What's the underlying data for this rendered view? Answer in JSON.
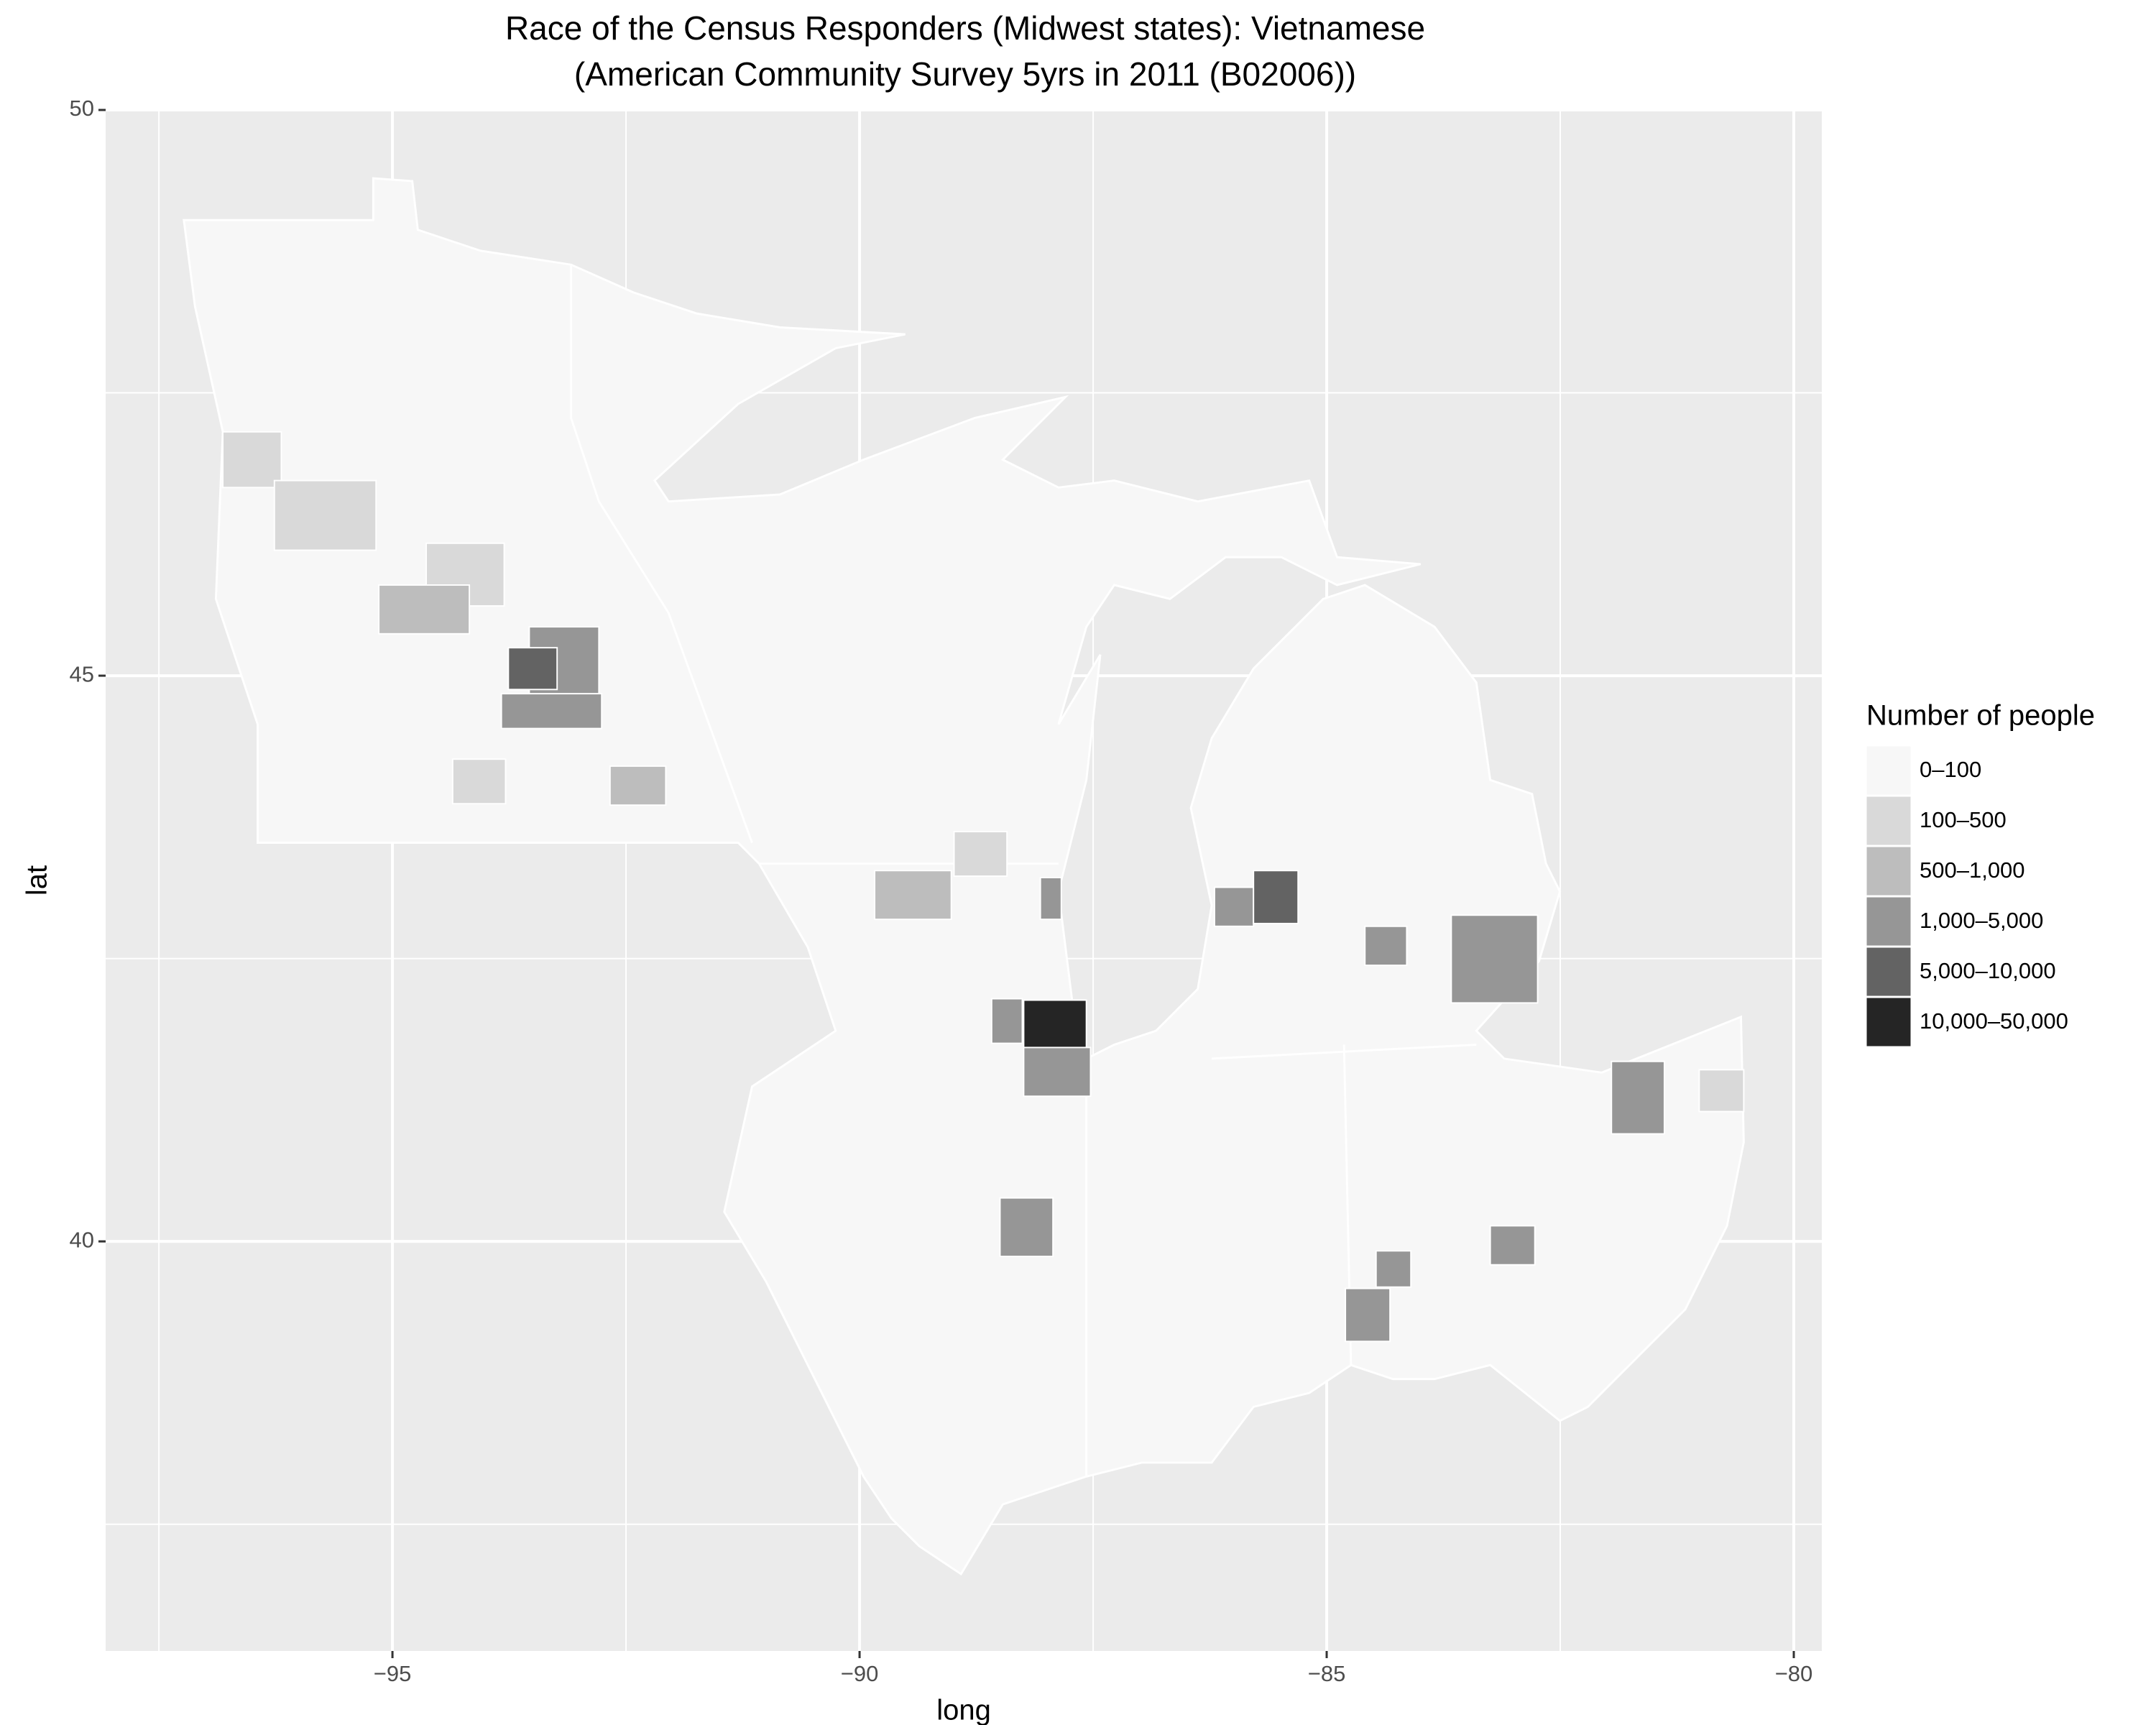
{
  "chart_data": {
    "type": "map",
    "title": "Race of the Census Responders (Midwest states): Vietnamese",
    "subtitle": "(American Community Survey 5yrs in 2011 (B02006))",
    "xlabel": "long",
    "ylabel": "lat",
    "xlim": [
      -98.07,
      -79.7
    ],
    "ylim": [
      36.38,
      50
    ],
    "xticks": [
      {
        "value": -95,
        "label": "−95"
      },
      {
        "value": -90,
        "label": "−90"
      },
      {
        "value": -85,
        "label": "−85"
      },
      {
        "value": -80,
        "label": "−80"
      }
    ],
    "yticks": [
      40,
      45,
      50
    ],
    "minor_xgrid": [
      -97.5,
      -92.5,
      -87.5,
      -82.5
    ],
    "minor_ygrid": [
      37.5,
      42.5,
      47.5
    ],
    "grid": true,
    "legend": {
      "title": "Number of people",
      "position": "right",
      "items": [
        {
          "label": "0–100",
          "color": "#f7f7f7"
        },
        {
          "label": "100–500",
          "color": "#d9d9d9"
        },
        {
          "label": "500–1,000",
          "color": "#bdbdbd"
        },
        {
          "label": "1,000–5,000",
          "color": "#969696"
        },
        {
          "label": "5,000–10,000",
          "color": "#636363"
        },
        {
          "label": "10,000–50,000",
          "color": "#252525"
        }
      ]
    }
  }
}
